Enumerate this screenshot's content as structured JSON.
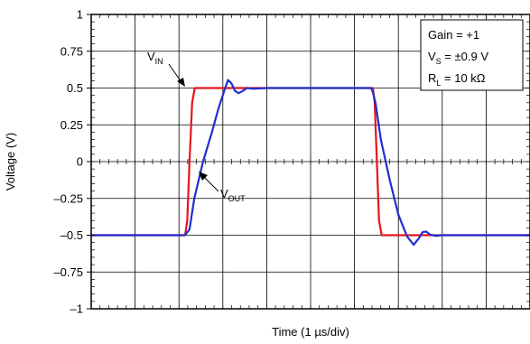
{
  "chart_data": {
    "type": "line",
    "title": "",
    "xlabel": "Time (1 µs/div)",
    "ylabel": "Voltage (V)",
    "xlim": [
      0,
      10
    ],
    "ylim": [
      -1,
      1
    ],
    "x_divisions": 10,
    "y_ticks": [
      1,
      0.75,
      0.5,
      0.25,
      0,
      -0.25,
      -0.5,
      -0.75,
      -1
    ],
    "y_tick_labels": [
      "1",
      "0.75",
      "0.5",
      "0.25",
      "0",
      "–0.25",
      "–0.5",
      "–0.75",
      "–1"
    ],
    "grid": true,
    "series": [
      {
        "name": "VIN",
        "color": "#e8141c",
        "x": [
          0,
          2.14,
          2.19,
          2.24,
          2.3,
          2.36,
          3.0,
          6.0,
          6.42,
          6.46,
          6.51,
          6.56,
          6.62,
          8.0,
          10
        ],
        "y": [
          -0.5,
          -0.5,
          -0.4,
          0.0,
          0.4,
          0.5,
          0.5,
          0.5,
          0.5,
          0.4,
          0.0,
          -0.4,
          -0.5,
          -0.5,
          -0.5
        ]
      },
      {
        "name": "VOUT",
        "color": "#1f2fd0",
        "x": [
          0,
          2.14,
          2.24,
          2.35,
          2.55,
          2.75,
          2.9,
          3.03,
          3.12,
          3.2,
          3.28,
          3.36,
          3.45,
          3.55,
          3.7,
          4.0,
          6.0,
          6.38,
          6.42,
          6.48,
          6.6,
          6.8,
          7.0,
          7.2,
          7.35,
          7.47,
          7.55,
          7.63,
          7.72,
          7.85,
          8.0,
          10
        ],
        "y": [
          -0.5,
          -0.5,
          -0.46,
          -0.25,
          0.0,
          0.2,
          0.36,
          0.48,
          0.555,
          0.53,
          0.48,
          0.465,
          0.48,
          0.5,
          0.495,
          0.5,
          0.5,
          0.5,
          0.47,
          0.4,
          0.15,
          -0.12,
          -0.36,
          -0.51,
          -0.565,
          -0.52,
          -0.48,
          -0.475,
          -0.495,
          -0.505,
          -0.5,
          -0.5
        ]
      }
    ],
    "annotations": {
      "vin": {
        "main": "V",
        "sub": "IN"
      },
      "vout": {
        "main": "V",
        "sub": "OUT"
      }
    },
    "info_box": {
      "line1": "Gain = +1",
      "line2_main": "V",
      "line2_sub": "S",
      "line2_rest": " = ±0.9 V",
      "line3_main": "R",
      "line3_sub": "L",
      "line3_rest": " = 10 kΩ"
    }
  }
}
